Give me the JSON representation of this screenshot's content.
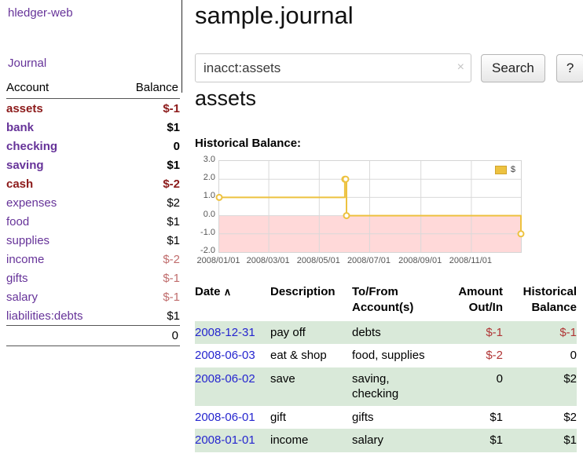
{
  "app": {
    "title": "hledger-web",
    "nav_journal": "Journal"
  },
  "sidebar": {
    "header": {
      "account": "Account",
      "balance": "Balance"
    },
    "accounts": [
      {
        "name": "assets",
        "balance": "$-1",
        "indent": 1,
        "bold": true,
        "name_negative": true,
        "balance_negative": true
      },
      {
        "name": "bank",
        "balance": "$1",
        "indent": 2,
        "bold": true,
        "name_negative": false,
        "balance_negative": false
      },
      {
        "name": "checking",
        "balance": "0",
        "indent": 3,
        "bold": true,
        "name_negative": false,
        "balance_negative": false
      },
      {
        "name": "saving",
        "balance": "$1",
        "indent": 3,
        "bold": true,
        "name_negative": false,
        "balance_negative": false
      },
      {
        "name": "cash",
        "balance": "$-2",
        "indent": 2,
        "bold": true,
        "name_negative": true,
        "balance_negative": true
      },
      {
        "name": "expenses",
        "balance": "$2",
        "indent": 1,
        "bold": false,
        "name_negative": false,
        "balance_negative": false
      },
      {
        "name": "food",
        "balance": "$1",
        "indent": 2,
        "bold": false,
        "name_negative": false,
        "balance_negative": false
      },
      {
        "name": "supplies",
        "balance": "$1",
        "indent": 2,
        "bold": false,
        "name_negative": false,
        "balance_negative": false
      },
      {
        "name": "income",
        "balance": "$-2",
        "indent": 1,
        "bold": false,
        "name_negative": false,
        "balance_negative": true
      },
      {
        "name": "gifts",
        "balance": "$-1",
        "indent": 2,
        "bold": false,
        "name_negative": false,
        "balance_negative": true
      },
      {
        "name": "salary",
        "balance": "$-1",
        "indent": 2,
        "bold": false,
        "name_negative": false,
        "balance_negative": true
      },
      {
        "name": "liabilities:debts",
        "balance": "$1",
        "indent": 1,
        "bold": false,
        "name_negative": false,
        "balance_negative": false
      }
    ],
    "total": "0"
  },
  "main": {
    "title": "sample.journal",
    "search": {
      "value": "inacct:assets",
      "clear_icon": "×",
      "button": "Search",
      "help_button": "?"
    },
    "account_heading": "assets",
    "chart_label": "Historical Balance:"
  },
  "chart_data": {
    "type": "line",
    "step": true,
    "title": "Historical Balance",
    "legend_label": "$",
    "legend_position": "top-right",
    "grid": true,
    "series_color": "#edc240",
    "ylim": [
      -2.0,
      3.0
    ],
    "yticks": [
      "3.0",
      "2.0",
      "1.0",
      "0.0",
      "-1.0",
      "-2.0"
    ],
    "ytick_values": [
      3,
      2,
      1,
      0,
      -1,
      -2
    ],
    "x_max_day": 365,
    "xticks": [
      {
        "label": "2008/01/01",
        "day": 0
      },
      {
        "label": "2008/03/01",
        "day": 60
      },
      {
        "label": "2008/05/01",
        "day": 121
      },
      {
        "label": "2008/07/01",
        "day": 182
      },
      {
        "label": "2008/09/01",
        "day": 244
      },
      {
        "label": "2008/11/01",
        "day": 305
      }
    ],
    "points": [
      {
        "date": "2008-01-01",
        "day": 0,
        "value": 1
      },
      {
        "date": "2008-06-01",
        "day": 152,
        "value": 2
      },
      {
        "date": "2008-06-02",
        "day": 153,
        "value": 2
      },
      {
        "date": "2008-06-03",
        "day": 154,
        "value": 0
      },
      {
        "date": "2008-12-31",
        "day": 365,
        "value": -1
      }
    ],
    "negative_region": {
      "from": 0,
      "to": -2,
      "color": "#ffd9d9"
    }
  },
  "register": {
    "columns": {
      "date": "Date",
      "sort_icon": "∧",
      "description": "Description",
      "account": "To/From Account(s)",
      "amount": "Amount Out/In",
      "balance": "Historical Balance"
    },
    "rows": [
      {
        "date": "2008-12-31",
        "description": "pay off",
        "accounts": "debts",
        "amount": "$-1",
        "amount_negative": true,
        "balance": "$-1",
        "balance_negative": true,
        "highlight": true
      },
      {
        "date": "2008-06-03",
        "description": "eat & shop",
        "accounts": "food, supplies",
        "amount": "$-2",
        "amount_negative": true,
        "balance": "0",
        "balance_negative": false,
        "highlight": false
      },
      {
        "date": "2008-06-02",
        "description": "save",
        "accounts": "saving, checking",
        "amount": "0",
        "amount_negative": false,
        "balance": "$2",
        "balance_negative": false,
        "highlight": true
      },
      {
        "date": "2008-06-01",
        "description": "gift",
        "accounts": "gifts",
        "amount": "$1",
        "amount_negative": false,
        "balance": "$2",
        "balance_negative": false,
        "highlight": false
      },
      {
        "date": "2008-01-01",
        "description": "income",
        "accounts": "salary",
        "amount": "$1",
        "amount_negative": false,
        "balance": "$1",
        "balance_negative": false,
        "highlight": true
      }
    ]
  },
  "colors": {
    "link_purple": "#663399",
    "negative_dark_red": "#8c1a1a",
    "negative_rose": "#c06d6d",
    "register_negative_red": "#b03535",
    "row_highlight_green": "#d9e9d9",
    "date_link_blue": "#2525cf",
    "chart_series_gold": "#edc240",
    "chart_negative_region_pink": "#ffd9d9"
  }
}
